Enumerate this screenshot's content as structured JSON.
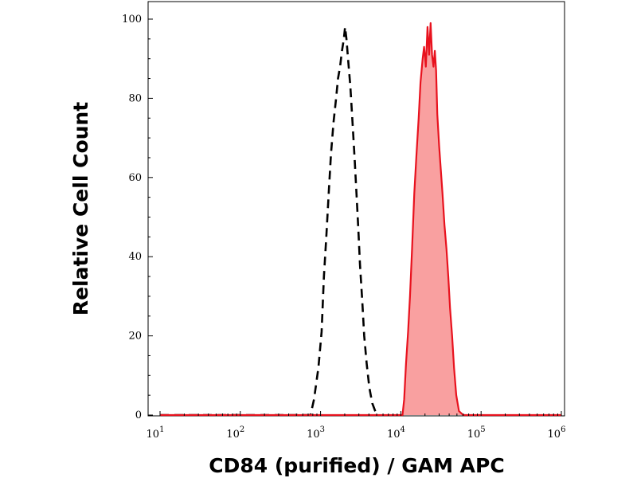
{
  "chart_data": {
    "type": "area",
    "xlabel": "CD84 (purified) / GAM APC",
    "ylabel": "Relative Cell Count",
    "x_scale": "log",
    "xlim": [
      10,
      1000000
    ],
    "ylim": [
      0,
      100
    ],
    "x_ticks": [
      {
        "value": 10,
        "base": "10",
        "exp": "1"
      },
      {
        "value": 100,
        "base": "10",
        "exp": "2"
      },
      {
        "value": 1000,
        "base": "10",
        "exp": "3"
      },
      {
        "value": 10000,
        "base": "10",
        "exp": "4"
      },
      {
        "value": 100000,
        "base": "10",
        "exp": "5"
      },
      {
        "value": 1000000,
        "base": "10",
        "exp": "6"
      }
    ],
    "y_ticks": [
      0,
      20,
      40,
      60,
      80,
      100
    ],
    "grid": false,
    "colors": {
      "filled": "#e8121e",
      "fill": "#f9a0a0",
      "dashed": "#000000",
      "axis": "#000000"
    },
    "series": [
      {
        "style": "dashed",
        "points": [
          [
            10,
            0
          ],
          [
            750,
            0
          ],
          [
            830,
            4
          ],
          [
            940,
            12
          ],
          [
            1030,
            21
          ],
          [
            1100,
            35
          ],
          [
            1180,
            45
          ],
          [
            1270,
            57
          ],
          [
            1350,
            66
          ],
          [
            1450,
            74
          ],
          [
            1560,
            80
          ],
          [
            1650,
            85
          ],
          [
            1750,
            88
          ],
          [
            1850,
            92
          ],
          [
            1950,
            95
          ],
          [
            2020,
            98
          ],
          [
            2100,
            95
          ],
          [
            2200,
            90
          ],
          [
            2350,
            83
          ],
          [
            2500,
            74
          ],
          [
            2650,
            65
          ],
          [
            2800,
            56
          ],
          [
            2950,
            47
          ],
          [
            3100,
            38
          ],
          [
            3300,
            29
          ],
          [
            3500,
            20
          ],
          [
            3750,
            13
          ],
          [
            4050,
            7
          ],
          [
            4400,
            3
          ],
          [
            5000,
            0
          ]
        ]
      },
      {
        "style": "filled",
        "points": [
          [
            10,
            0
          ],
          [
            10500,
            0
          ],
          [
            11000,
            4
          ],
          [
            11600,
            13
          ],
          [
            12300,
            21
          ],
          [
            13000,
            30
          ],
          [
            13800,
            42
          ],
          [
            14700,
            56
          ],
          [
            15700,
            66
          ],
          [
            16700,
            75
          ],
          [
            17600,
            84
          ],
          [
            18700,
            90
          ],
          [
            19500,
            93
          ],
          [
            20500,
            88
          ],
          [
            21500,
            98
          ],
          [
            22500,
            91
          ],
          [
            23500,
            99
          ],
          [
            24500,
            91
          ],
          [
            25500,
            88
          ],
          [
            26500,
            92
          ],
          [
            27500,
            87
          ],
          [
            28500,
            76
          ],
          [
            30000,
            68
          ],
          [
            31500,
            62
          ],
          [
            33000,
            56
          ],
          [
            35000,
            48
          ],
          [
            37000,
            42
          ],
          [
            39000,
            35
          ],
          [
            41000,
            27
          ],
          [
            43500,
            20
          ],
          [
            46000,
            12
          ],
          [
            49000,
            5
          ],
          [
            53000,
            1
          ],
          [
            60000,
            0
          ],
          [
            1000000,
            0
          ]
        ]
      }
    ]
  }
}
